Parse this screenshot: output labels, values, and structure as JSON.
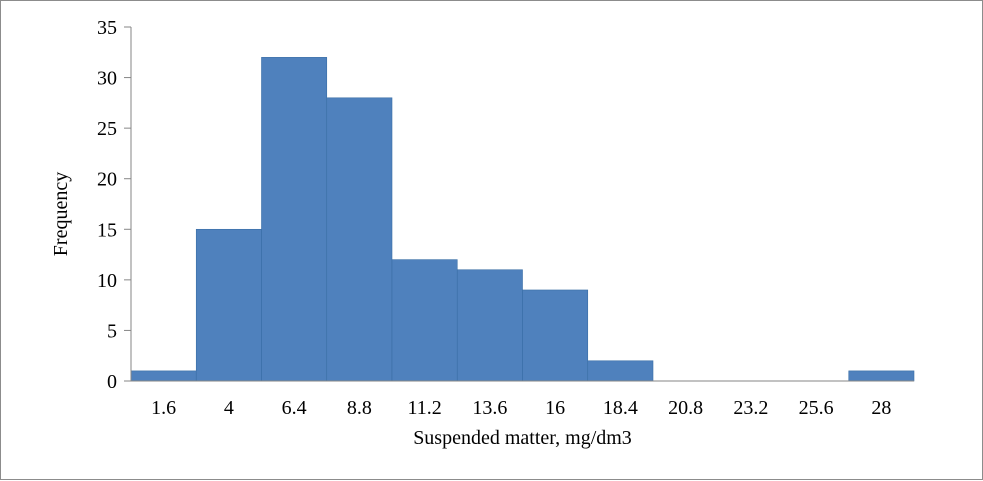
{
  "chart_data": {
    "type": "bar",
    "title": "",
    "xlabel": "Suspended matter, mg/dm3",
    "ylabel": "Frequency",
    "categories": [
      "1.6",
      "4",
      "6.4",
      "8.8",
      "11.2",
      "13.6",
      "16",
      "18.4",
      "20.8",
      "23.2",
      "25.6",
      "28"
    ],
    "values": [
      1,
      15,
      32,
      28,
      12,
      11,
      9,
      2,
      0,
      0,
      0,
      1
    ],
    "ylim": [
      0,
      35
    ],
    "yticks": [
      0,
      5,
      10,
      15,
      20,
      25,
      30,
      35
    ],
    "grid": false,
    "legend": "none",
    "bar_color": "#4f81bd",
    "bar_outline_color": "#3a6ea5",
    "axis_color": "#868686"
  }
}
